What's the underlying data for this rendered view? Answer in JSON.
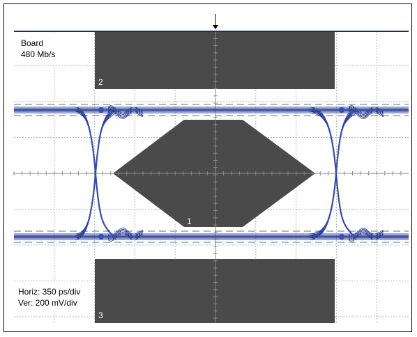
{
  "chart_data": {
    "type": "eye-diagram",
    "labels": {
      "board": "Board",
      "rate": "480 Mb/s",
      "horiz": "Horiz: 350 ps/div",
      "ver": "Ver: 200 mV/div"
    },
    "mask_zone_labels": {
      "center": "1",
      "top": "2",
      "bottom": "3"
    },
    "grid": true,
    "colors": {
      "mask": "#4a4a4a",
      "trace": "#3a4fb0",
      "trace_dark": "#1a2e6e",
      "grid": "#b8b8b8"
    }
  }
}
